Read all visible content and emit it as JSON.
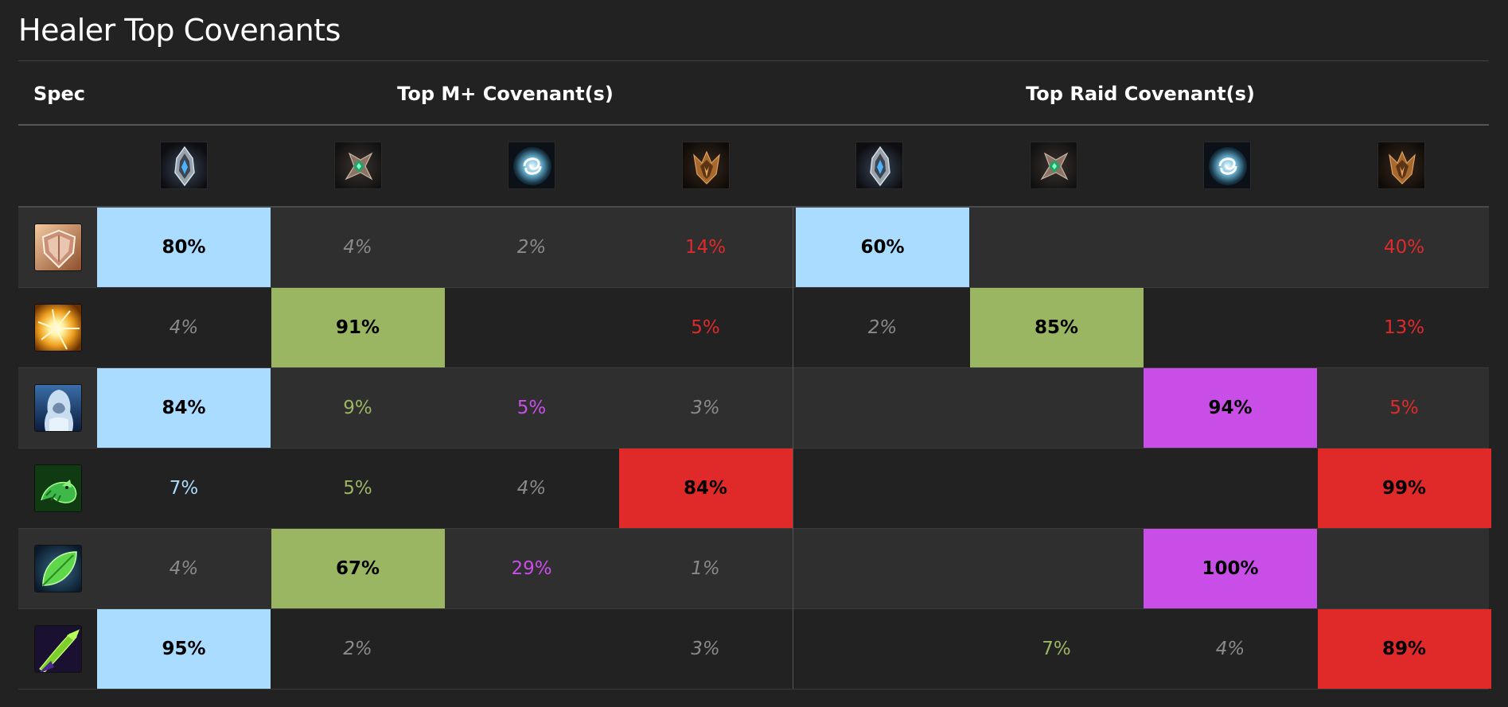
{
  "title": "Healer Top Covenants",
  "header": {
    "spec": "Spec",
    "mplus": "Top M+ Covenant(s)",
    "raid": "Top Raid Covenant(s)"
  },
  "covenant_icons": [
    "kyrian-icon",
    "necrolord-icon",
    "night-fae-icon",
    "venthyr-icon"
  ],
  "colors": {
    "kyrian": "#aadcff",
    "necrolord": "#9ab663",
    "night_fae": "#c94ee8",
    "venthyr": "#e02a2a",
    "muted": "#8a8a8a"
  },
  "rows": [
    {
      "spec_icon": "holy-paladin-icon",
      "mplus": [
        "80%",
        "4%",
        "2%",
        "14%"
      ],
      "raid": [
        "60%",
        "",
        "",
        "40%"
      ]
    },
    {
      "spec_icon": "holy-priest-icon",
      "mplus": [
        "4%",
        "91%",
        "",
        "5%"
      ],
      "raid": [
        "2%",
        "85%",
        "",
        "13%"
      ]
    },
    {
      "spec_icon": "discipline-priest-icon",
      "mplus": [
        "84%",
        "9%",
        "5%",
        "3%"
      ],
      "raid": [
        "",
        "",
        "94%",
        "5%"
      ]
    },
    {
      "spec_icon": "mistweaver-monk-icon",
      "mplus": [
        "7%",
        "5%",
        "4%",
        "84%"
      ],
      "raid": [
        "",
        "",
        "",
        "99%"
      ]
    },
    {
      "spec_icon": "restoration-druid-icon",
      "mplus": [
        "4%",
        "67%",
        "29%",
        "1%"
      ],
      "raid": [
        "",
        "",
        "100%",
        ""
      ]
    },
    {
      "spec_icon": "restoration-shaman-icon",
      "mplus": [
        "95%",
        "2%",
        "",
        "3%"
      ],
      "raid": [
        "",
        "7%",
        "4%",
        "89%"
      ]
    }
  ]
}
